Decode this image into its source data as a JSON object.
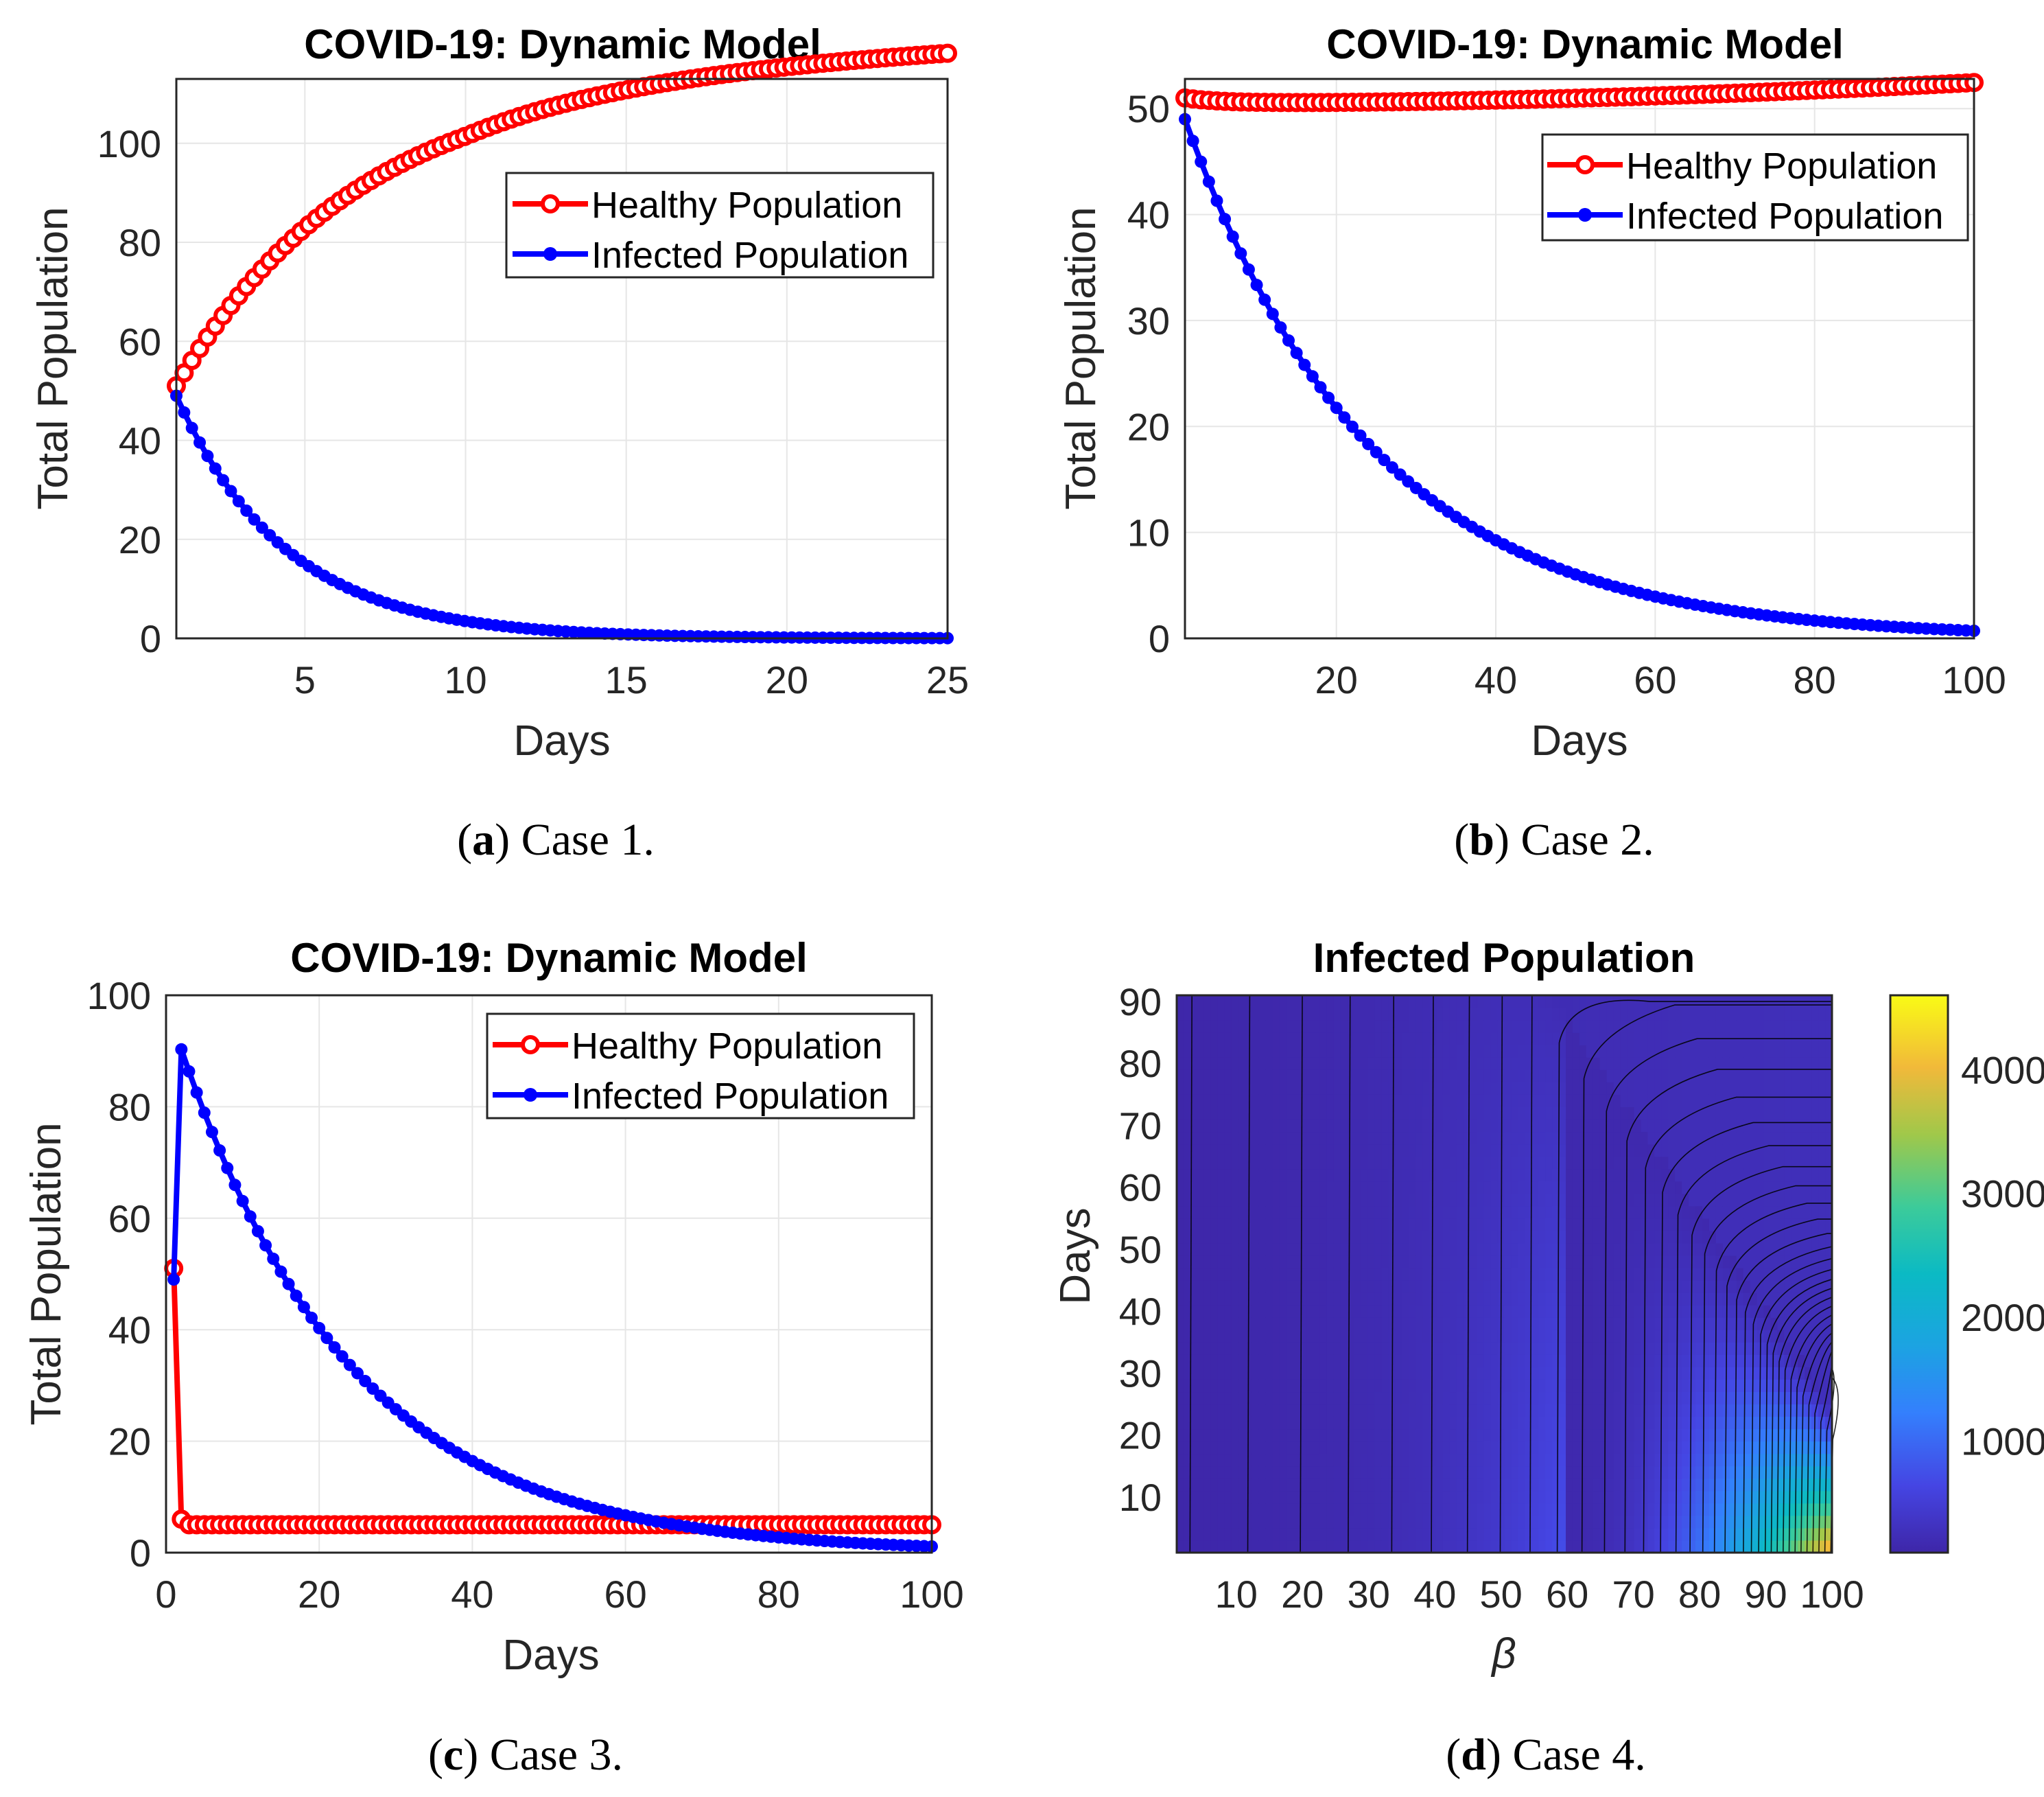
{
  "colors": {
    "healthy": "#ff0000",
    "infected": "#0000ff",
    "grid": "#e6e6e6",
    "axis": "#262626"
  },
  "panels": [
    {
      "id": "a",
      "caption": {
        "letter": "a",
        "text": "Case 1."
      },
      "chart_data": {
        "type": "line",
        "title": "COVID-19: Dynamic Model",
        "xlabel": "Days",
        "ylabel": "Total Population",
        "xlim": [
          1,
          25
        ],
        "ylim": [
          0,
          113
        ],
        "xticks": [
          5,
          10,
          15,
          20,
          25
        ],
        "yticks": [
          0,
          20,
          40,
          60,
          80,
          100
        ],
        "grid": true,
        "legend_position": "top-right",
        "x": {
          "start": 1,
          "end": 25,
          "count": 100
        },
        "series": [
          {
            "name": "Healthy Population",
            "marker": "open-circle",
            "model": "healthy_case1"
          },
          {
            "name": "Infected Population",
            "marker": "dot",
            "model": "infected_case1"
          }
        ]
      }
    },
    {
      "id": "b",
      "caption": {
        "letter": "b",
        "text": "Case 2."
      },
      "chart_data": {
        "type": "line",
        "title": "COVID-19: Dynamic Model",
        "xlabel": "Days",
        "ylabel": "Total Population",
        "xlim": [
          1,
          100
        ],
        "ylim": [
          0,
          52.8
        ],
        "xticks": [
          20,
          40,
          60,
          80,
          100
        ],
        "yticks": [
          0,
          10,
          20,
          30,
          40,
          50
        ],
        "grid": true,
        "legend_position": "top-right",
        "x": {
          "start": 1,
          "end": 100,
          "count": 100
        },
        "series": [
          {
            "name": "Healthy Population",
            "marker": "open-circle",
            "model": "healthy_case2"
          },
          {
            "name": "Infected Population",
            "marker": "dot",
            "model": "infected_case2"
          }
        ]
      }
    },
    {
      "id": "c",
      "caption": {
        "letter": "c",
        "text": "Case 3."
      },
      "chart_data": {
        "type": "line",
        "title": "COVID-19: Dynamic Model",
        "xlabel": "Days",
        "ylabel": "Total Population",
        "xlim": [
          0,
          100
        ],
        "ylim": [
          0,
          100
        ],
        "xticks": [
          0,
          20,
          40,
          60,
          80,
          100
        ],
        "yticks": [
          0,
          20,
          40,
          60,
          80,
          100
        ],
        "grid": true,
        "legend_position": "top-right",
        "x": {
          "start": 1,
          "end": 100,
          "count": 100
        },
        "series": [
          {
            "name": "Healthy Population",
            "marker": "open-circle",
            "model": "healthy_case3"
          },
          {
            "name": "Infected Population",
            "marker": "dot",
            "model": "infected_case3"
          }
        ]
      }
    },
    {
      "id": "d",
      "caption": {
        "letter": "d",
        "text": "Case 4."
      },
      "chart_data": {
        "type": "heatmap",
        "title": "Infected Population",
        "xlabel": "β",
        "ylabel": "Days",
        "xlim": [
          1,
          100
        ],
        "ylim": [
          1,
          91
        ],
        "xticks": [
          10,
          20,
          30,
          40,
          50,
          60,
          70,
          80,
          90,
          100
        ],
        "yticks": [
          10,
          20,
          30,
          40,
          50,
          60,
          70,
          80,
          90
        ],
        "colorbar": {
          "ticks": [
            1000,
            2000,
            3000,
            4000
          ],
          "range": [
            100,
            4600
          ],
          "colormap": "parula"
        },
        "contour_lines": true
      }
    }
  ]
}
